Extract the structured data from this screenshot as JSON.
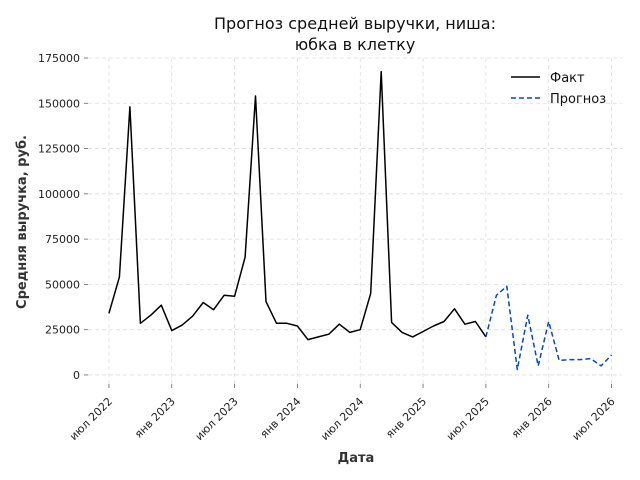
{
  "chart_data": {
    "type": "line",
    "title_lines": [
      "Прогноз средней выручки, ниша:",
      "юбка в клетку"
    ],
    "xlabel": "Дата",
    "ylabel": "Средняя выручка, руб.",
    "ylim": [
      -5000,
      175000
    ],
    "yticks": [
      0,
      25000,
      50000,
      75000,
      100000,
      125000,
      150000,
      175000
    ],
    "xticks": [
      {
        "date": "2022-07",
        "label": "июл 2022"
      },
      {
        "date": "2023-01",
        "label": "янв 2023"
      },
      {
        "date": "2023-07",
        "label": "июл 2023"
      },
      {
        "date": "2024-01",
        "label": "янв 2024"
      },
      {
        "date": "2024-07",
        "label": "июл 2024"
      },
      {
        "date": "2025-01",
        "label": "янв 2025"
      },
      {
        "date": "2025-07",
        "label": "июл 2025"
      },
      {
        "date": "2026-01",
        "label": "янв 2026"
      },
      {
        "date": "2026-07",
        "label": "июл 2026"
      }
    ],
    "grid": true,
    "legend_position": "top-right",
    "series": [
      {
        "name": "Факт",
        "color": "#000000",
        "style": "solid",
        "x": [
          "2022-07",
          "2022-08",
          "2022-09",
          "2022-10",
          "2022-11",
          "2022-12",
          "2023-01",
          "2023-02",
          "2023-03",
          "2023-04",
          "2023-05",
          "2023-06",
          "2023-07",
          "2023-08",
          "2023-09",
          "2023-10",
          "2023-11",
          "2023-12",
          "2024-01",
          "2024-02",
          "2024-03",
          "2024-04",
          "2024-05",
          "2024-06",
          "2024-07",
          "2024-08",
          "2024-09",
          "2024-10",
          "2024-11",
          "2024-12",
          "2025-01",
          "2025-02",
          "2025-03",
          "2025-04",
          "2025-05",
          "2025-06",
          "2025-07"
        ],
        "y": [
          34000,
          54000,
          148000,
          28500,
          33000,
          38500,
          24500,
          27500,
          32500,
          40000,
          36000,
          44000,
          43500,
          65000,
          154000,
          40500,
          28500,
          28500,
          27000,
          19500,
          21000,
          22500,
          28000,
          23500,
          25000,
          45000,
          167500,
          29000,
          23500,
          21000,
          24000,
          27000,
          29500,
          36500,
          28000,
          29500,
          21000
        ]
      },
      {
        "name": "Прогноз",
        "color": "#0047d4",
        "style": "dashed",
        "x": [
          "2025-07",
          "2025-08",
          "2025-09",
          "2025-10",
          "2025-11",
          "2025-12",
          "2026-01",
          "2026-02",
          "2026-03",
          "2026-04",
          "2026-05",
          "2026-06",
          "2026-07"
        ],
        "y": [
          21000,
          44000,
          49000,
          3000,
          33000,
          5000,
          29500,
          8000,
          8500,
          8500,
          9000,
          5000,
          11000
        ]
      }
    ]
  }
}
